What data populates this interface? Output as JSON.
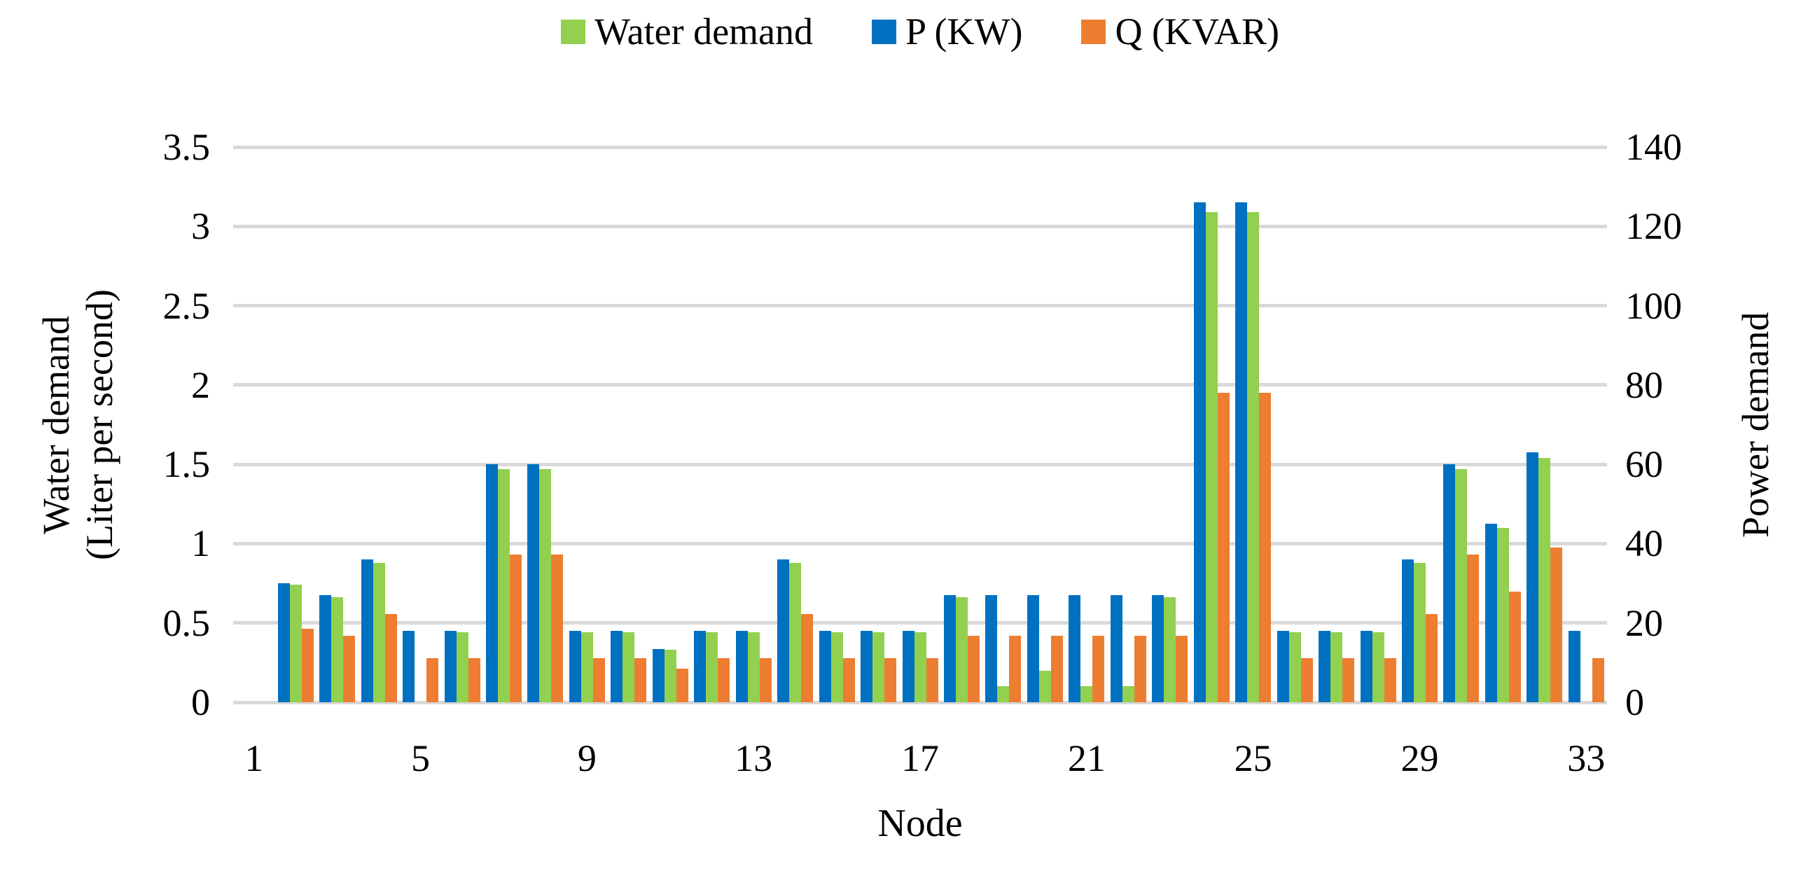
{
  "chart_data": {
    "type": "bar",
    "title": "",
    "background": "#FFFFFF",
    "grid_color": "#D9D9D9",
    "x_axis": {
      "title": "Node",
      "ticks": [
        "1",
        "5",
        "9",
        "13",
        "17",
        "21",
        "25",
        "29",
        "33"
      ],
      "num_categories": 33
    },
    "left_axis": {
      "title_lines": [
        "Water demand",
        "(Liter per second)"
      ],
      "min": 0,
      "max": 3.5,
      "ticks": [
        "0",
        "0.5",
        "1",
        "1.5",
        "2",
        "2.5",
        "3",
        "3.5"
      ]
    },
    "right_axis": {
      "title": "Power demand",
      "min": 0,
      "max": 140,
      "ticks": [
        "0",
        "20",
        "40",
        "60",
        "80",
        "100",
        "120",
        "140"
      ]
    },
    "categories": [
      1,
      2,
      3,
      4,
      5,
      6,
      7,
      8,
      9,
      10,
      11,
      12,
      13,
      14,
      15,
      16,
      17,
      18,
      19,
      20,
      21,
      22,
      23,
      24,
      25,
      26,
      27,
      28,
      29,
      30,
      31,
      32,
      33
    ],
    "series": [
      {
        "name": "P (KW)",
        "axis": "right",
        "color": "#0070C0",
        "values": [
          0,
          30,
          27,
          36,
          18,
          18,
          60,
          60,
          18,
          18,
          13.5,
          18,
          18,
          36,
          18,
          18,
          18,
          27,
          27,
          27,
          27,
          27,
          27,
          126,
          126,
          18,
          18,
          18,
          36,
          60,
          45,
          63,
          18
        ]
      },
      {
        "name": "Water demand",
        "axis": "left",
        "color": "#92D050",
        "values": [
          0,
          0.74,
          0.66,
          0.88,
          0,
          0.44,
          1.47,
          1.47,
          0.44,
          0.44,
          0.33,
          0.44,
          0.44,
          0.88,
          0.44,
          0.44,
          0.44,
          0.66,
          0.1,
          0.2,
          0.1,
          0.1,
          0.66,
          3.09,
          3.09,
          0.44,
          0.44,
          0.44,
          0.88,
          1.47,
          1.1,
          1.54,
          0
        ]
      },
      {
        "name": "Q (KVAR)",
        "axis": "right",
        "color": "#ED7D31",
        "values": [
          0,
          18.6,
          16.7,
          22.3,
          11.2,
          11.2,
          37.2,
          37.2,
          11.2,
          11.2,
          8.4,
          11.2,
          11.2,
          22.3,
          11.2,
          11.2,
          11.2,
          16.7,
          16.7,
          16.7,
          16.7,
          16.7,
          16.7,
          78.1,
          78.1,
          11.2,
          11.2,
          11.2,
          22.3,
          37.2,
          27.9,
          39.1,
          11.2
        ]
      }
    ],
    "legend": [
      {
        "label": "Water demand",
        "color": "#92D050"
      },
      {
        "label": "P (KW)",
        "color": "#0070C0"
      },
      {
        "label": "Q (KVAR)",
        "color": "#ED7D31"
      }
    ]
  }
}
